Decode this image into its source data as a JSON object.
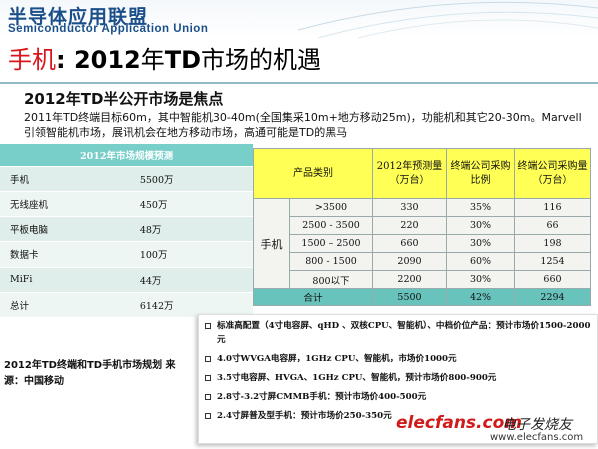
{
  "header": {
    "org_name": "半导体应用联盟",
    "org_sub": "Semiconductor Application Union"
  },
  "title": {
    "part1": "手机",
    "part2": ": 2012",
    "part3": "年",
    "part4": "TD",
    "part5": "市场的机遇"
  },
  "subtitle": "2012年TD半公开市场是焦点",
  "paragraph": "2011年TD终端目标60m，其中智能机30-40m(全国集采10m+地方移动25m)，功能机和其它20-30m。Marvell引领智能机市场，展讯机会在地方移动市场，高通可能是TD的黑马",
  "left_table": {
    "header": "2012年市场规模预测",
    "rows": [
      {
        "label": "手机",
        "value": "5500万"
      },
      {
        "label": "无线座机",
        "value": "450万"
      },
      {
        "label": "平板电脑",
        "value": "48万"
      },
      {
        "label": "数据卡",
        "value": "100万"
      },
      {
        "label": "MiFi",
        "value": "44万"
      },
      {
        "label": "总计",
        "value": "6142万"
      }
    ]
  },
  "right_table": {
    "headers": [
      "产品类别",
      "2012年预测量（万台）",
      "终端公司采购比例",
      "终端公司采购量（万台）"
    ],
    "group_label": "手机",
    "rows": [
      {
        "range": ">3500",
        "forecast": "330",
        "ratio": "35%",
        "purchase": "116"
      },
      {
        "range": "2500 - 3500",
        "forecast": "220",
        "ratio": "30%",
        "purchase": "66"
      },
      {
        "range": "1500  – 2500",
        "forecast": "660",
        "ratio": "30%",
        "purchase": "198"
      },
      {
        "range": "800 - 1500",
        "forecast": "2090",
        "ratio": "60%",
        "purchase": "1254"
      },
      {
        "range": "800以下",
        "forecast": "2200",
        "ratio": "30%",
        "purchase": "660"
      }
    ],
    "total": {
      "label": "合计",
      "forecast": "5500",
      "ratio": "42%",
      "purchase": "2294"
    }
  },
  "bullets": [
    "标准高配置（4寸电容屏、qHD 、双核CPU、智能机）、中档价位产品：预计市场价1500-2000元",
    "4.0寸WVGA电容屏，1GHz CPU、智能机，市场价1000元",
    "3.5寸电容屏、HVGA、1GHz CPU、智能机，预计市场价800-900元",
    "2.8寸-3.2寸屏CMMB手机：预计市场价400-500元",
    "2.4寸屏普及型手机：预计市场价250-350元"
  ],
  "note": "2012年TD终端和TD手机市场规划 来源：中国移动",
  "watermark": {
    "logo_text": "elecfans.com",
    "brand": "电子发烧友",
    "url": "www.elecfans.com"
  }
}
